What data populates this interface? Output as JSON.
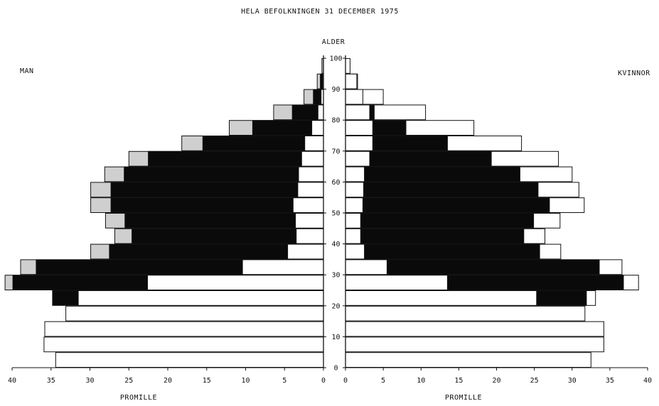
{
  "chart_data": {
    "type": "bar",
    "subtype": "population-pyramid",
    "title": "HELA BEFOLKNINGEN 31 DECEMBER 1975",
    "center_axis_label": "ALDER",
    "left_label": "MAN",
    "right_label": "KVINNOR",
    "xlabel_left": "PROMILLE",
    "xlabel_right": "PROMILLE",
    "xlim": [
      0,
      40
    ],
    "ylim": [
      0,
      100
    ],
    "x_ticks": [
      "40",
      "35",
      "30",
      "25",
      "20",
      "15",
      "10",
      "5",
      "0"
    ],
    "x_ticks_right": [
      "0",
      "5",
      "10",
      "15",
      "20",
      "25",
      "30",
      "35",
      "40"
    ],
    "y_ticks": [
      "0",
      "10",
      "20",
      "30",
      "40",
      "50",
      "60",
      "70",
      "80",
      "90",
      "100"
    ],
    "age_groups": [
      "0-4",
      "5-9",
      "10-14",
      "15-19",
      "20-24",
      "25-29",
      "30-34",
      "35-39",
      "40-44",
      "45-49",
      "50-54",
      "55-59",
      "60-64",
      "65-69",
      "70-74",
      "75-79",
      "80-84",
      "85-89",
      "90-94",
      "95-99"
    ],
    "series": [
      {
        "side": "left",
        "fill": "white",
        "values": [
          34.4,
          35.9,
          35.8,
          33.1,
          31.5,
          22.6,
          10.4,
          4.6,
          3.5,
          3.6,
          3.9,
          3.3,
          3.2,
          2.8,
          2.4,
          1.5,
          0.7,
          0.3,
          0.1,
          0.0
        ]
      },
      {
        "side": "left",
        "fill": "black",
        "values": [
          0,
          0,
          0,
          0,
          34.8,
          39.9,
          36.9,
          27.5,
          24.6,
          25.5,
          27.3,
          27.3,
          25.6,
          22.5,
          15.5,
          9.1,
          4.0,
          1.3,
          0.4,
          0.0
        ]
      },
      {
        "side": "left",
        "fill": "gray",
        "values": [
          0,
          0,
          0,
          0,
          0,
          40.9,
          38.9,
          29.9,
          26.8,
          28.0,
          29.9,
          29.9,
          28.1,
          25.0,
          18.2,
          12.1,
          6.4,
          2.5,
          0.8,
          0.2
        ]
      },
      {
        "side": "right",
        "fill": "white",
        "values": [
          32.5,
          34.2,
          34.2,
          31.7,
          25.3,
          13.5,
          5.5,
          2.5,
          2.0,
          2.0,
          2.3,
          2.4,
          2.5,
          3.2,
          3.6,
          3.6,
          3.2,
          2.3,
          1.5,
          0.6
        ]
      },
      {
        "side": "right",
        "fill": "black",
        "values": [
          0,
          0,
          0,
          0,
          31.9,
          36.8,
          33.6,
          25.7,
          23.6,
          24.9,
          27.0,
          25.5,
          23.1,
          19.3,
          13.5,
          8.0,
          3.8,
          1.4,
          0.3,
          0.0
        ]
      },
      {
        "side": "right",
        "fill": "outline",
        "values": [
          0,
          0,
          0,
          0,
          33.1,
          38.8,
          36.6,
          28.5,
          26.4,
          28.4,
          31.6,
          30.9,
          30.0,
          28.2,
          23.3,
          17.0,
          10.6,
          5.0,
          1.6,
          0.2
        ]
      }
    ],
    "colors": {
      "black": "#0a0a0a",
      "gray": "#cfcfcf",
      "white": "#ffffff",
      "line": "#111111"
    }
  }
}
